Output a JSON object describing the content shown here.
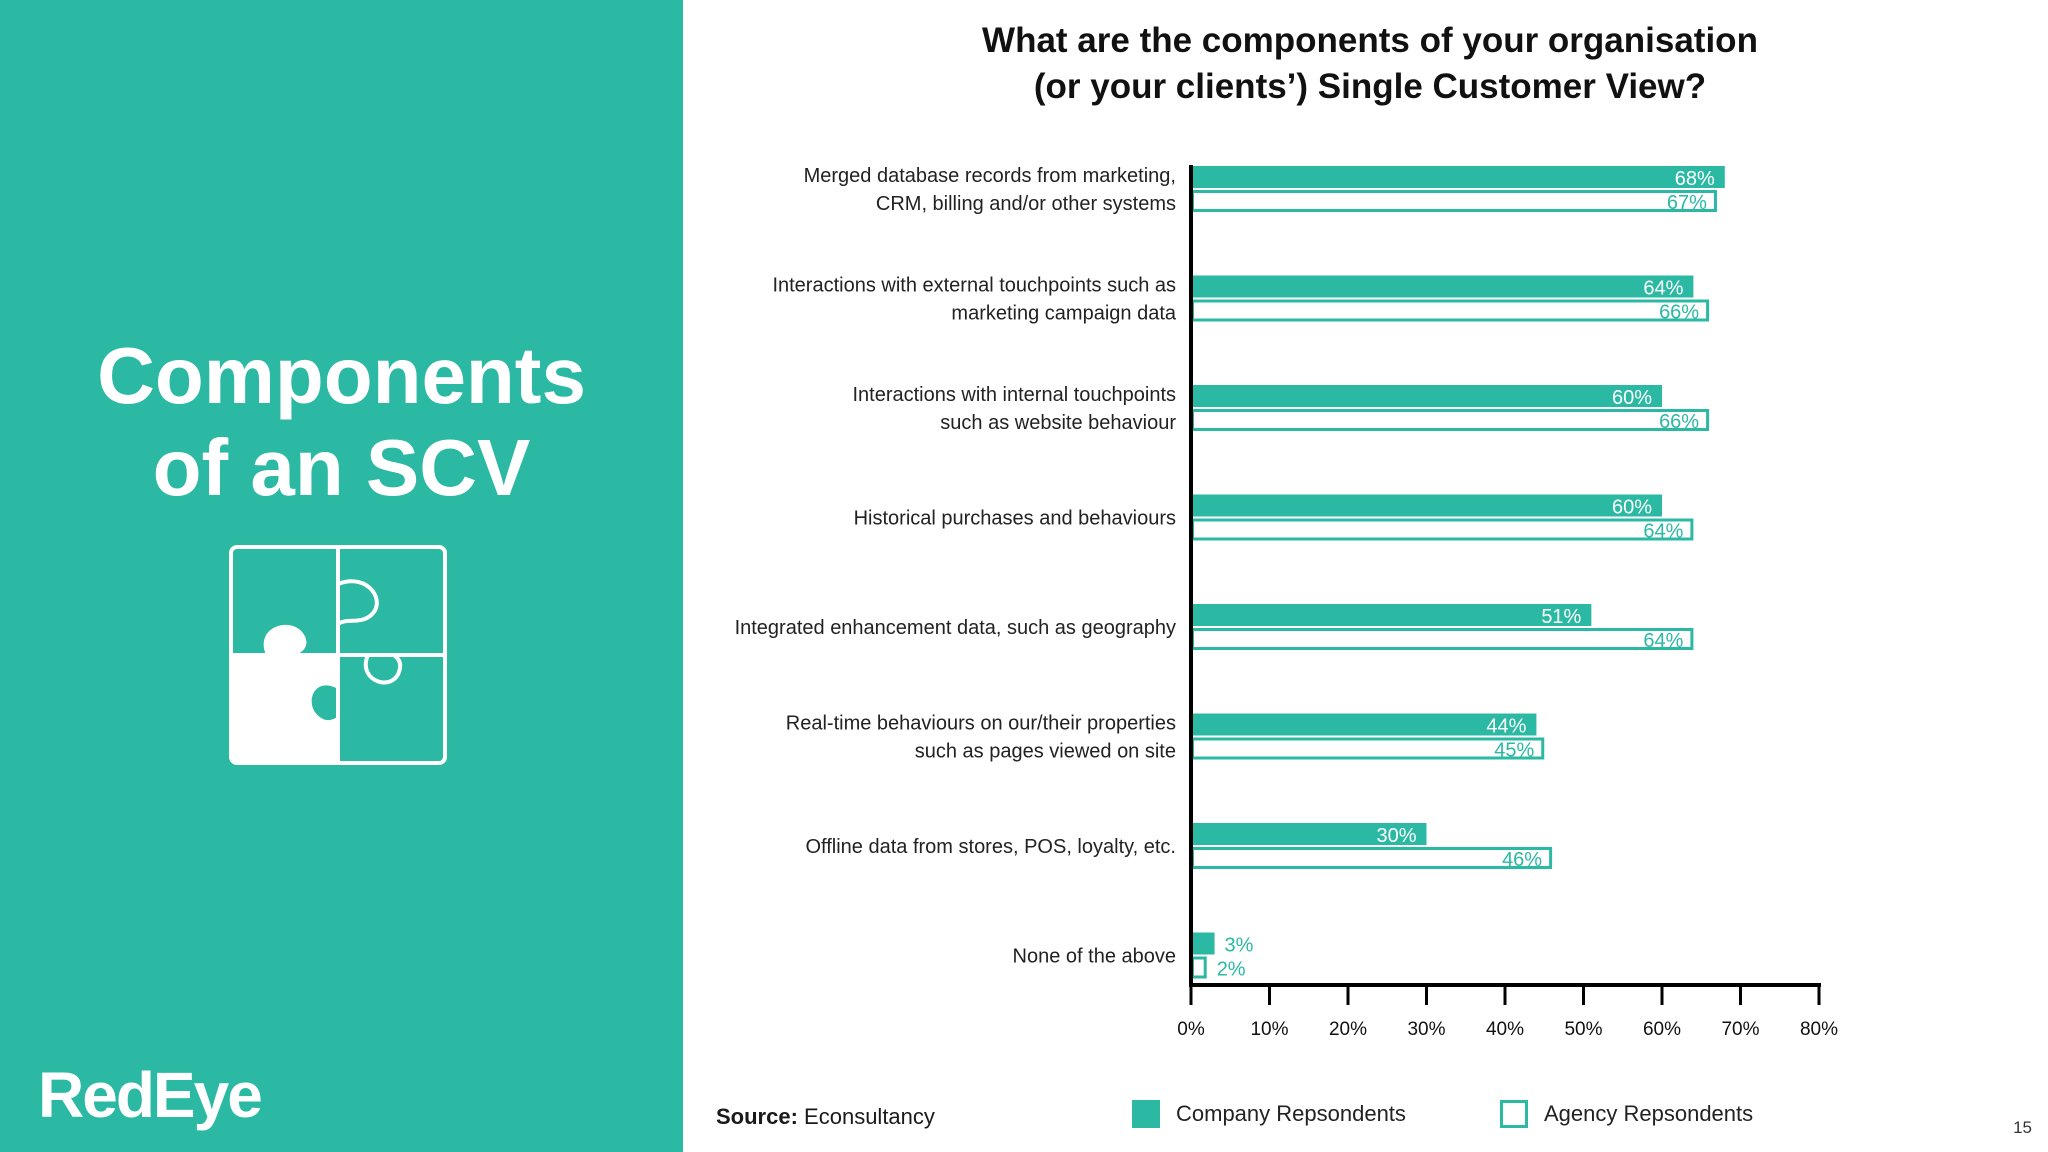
{
  "slide": {
    "title_line1": "Components",
    "title_line2": "of an SCV",
    "logo": "RedEye",
    "page_number": "15",
    "source_label": "Source:",
    "source_value": "Econsultancy",
    "accent_color": "#2bb9a4"
  },
  "chart_data": {
    "type": "bar",
    "orientation": "horizontal",
    "title_line1": "What are the components of your organisation",
    "title_line2": "(or your clients’) Single Customer View?",
    "categories": [
      [
        "Merged database records from marketing,",
        "CRM, billing and/or other systems"
      ],
      [
        "Interactions with external touchpoints such as",
        "marketing campaign data"
      ],
      [
        "Interactions with internal touchpoints",
        "such as website behaviour"
      ],
      [
        "Historical purchases and behaviours"
      ],
      [
        "Integrated enhancement data, such as geography"
      ],
      [
        "Real-time behaviours on our/their properties",
        "such as pages viewed on site"
      ],
      [
        "Offline data from stores, POS, loyalty, etc."
      ],
      [
        "None of the above"
      ]
    ],
    "series": [
      {
        "name": "Company Repsondents",
        "values": [
          68,
          64,
          60,
          60,
          51,
          44,
          30,
          3
        ],
        "style": "filled",
        "color": "#2bb9a4"
      },
      {
        "name": "Agency Repsondents",
        "values": [
          67,
          66,
          66,
          64,
          64,
          45,
          46,
          2
        ],
        "style": "outline",
        "color": "#2bb9a4"
      }
    ],
    "xlim": [
      0,
      80
    ],
    "xticks": [
      "0%",
      "10%",
      "20%",
      "30%",
      "40%",
      "50%",
      "60%",
      "70%",
      "80%"
    ],
    "value_suffix": "%",
    "legend_position": "bottom",
    "grid": false
  }
}
